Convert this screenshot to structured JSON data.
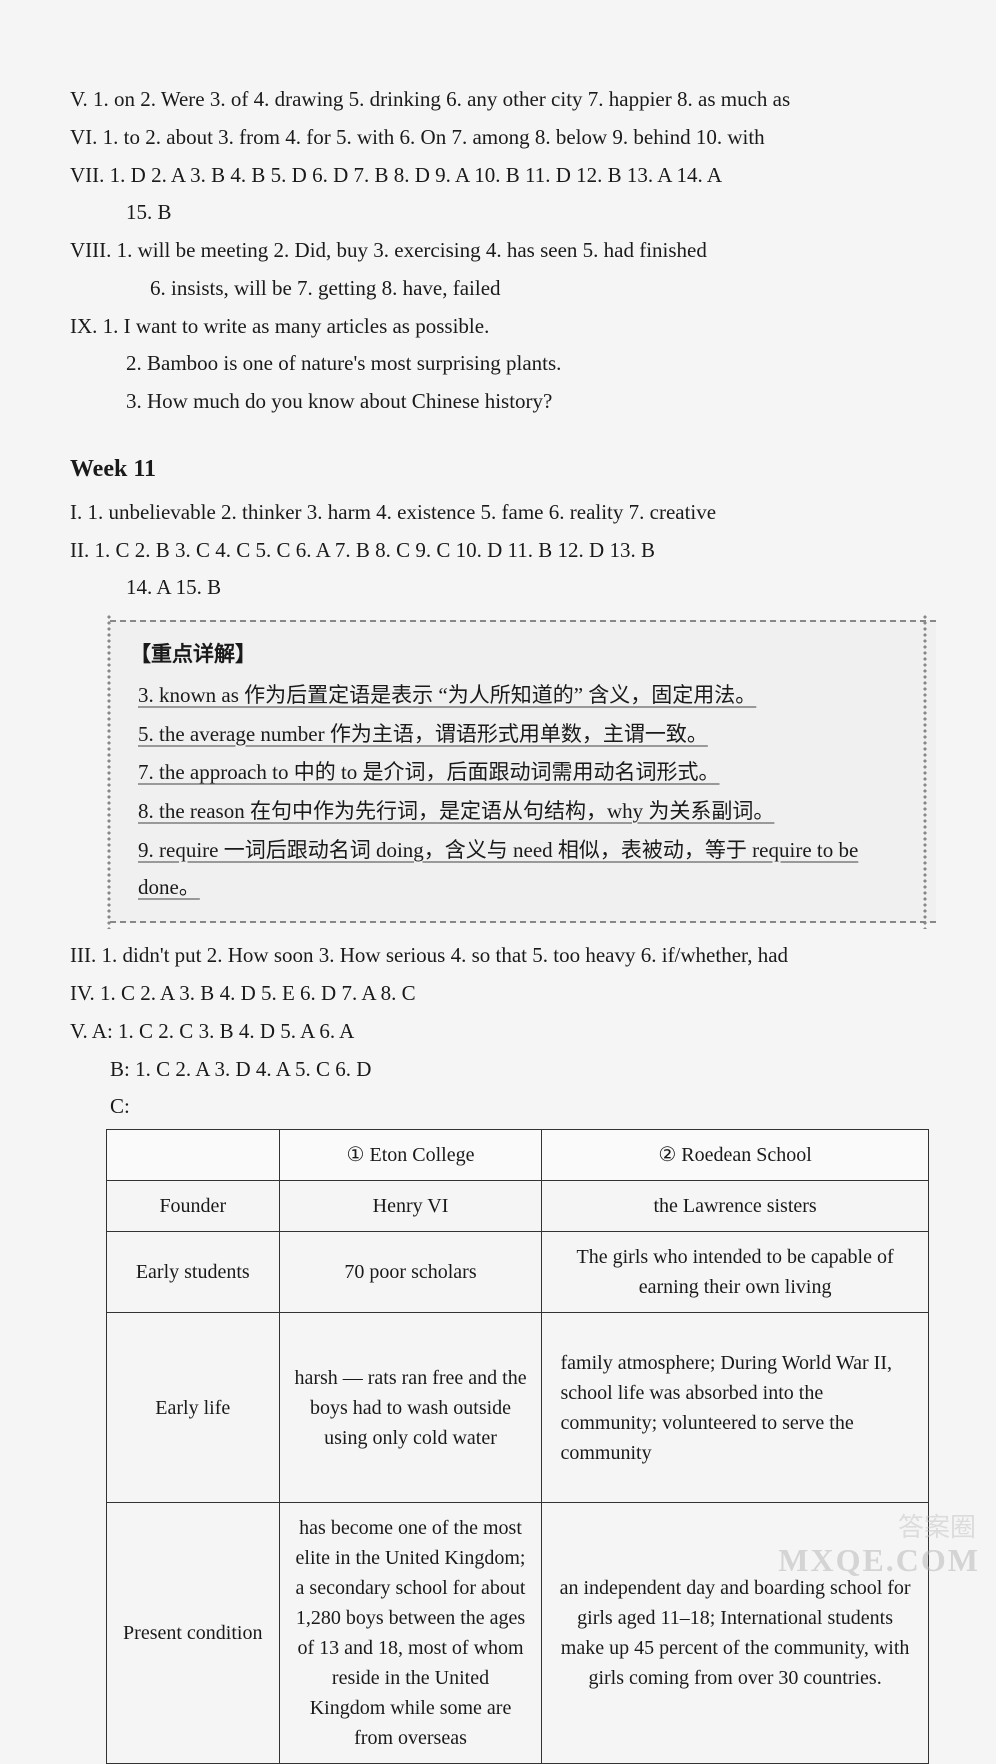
{
  "section_top": {
    "v": "V.  1. on  2. Were  3. of  4. drawing  5. drinking  6. any other city  7. happier  8. as much as",
    "vi": "VI.  1. to  2. about  3. from  4. for  5. with  6. On  7. among  8. below  9. behind  10. with",
    "vii": "VII. 1. D  2. A  3. B  4. B  5. D  6. D  7. B  8. D  9. A  10. B  11. D  12. B  13. A  14. A",
    "vii2": "15. B",
    "viii": "VIII. 1. will be meeting  2. Did, buy  3. exercising  4. has seen  5. had finished",
    "viii2": "6. insists, will be  7. getting  8. have, failed",
    "ix": "IX.  1. I want to write as many articles as possible.",
    "ix2": "2. Bamboo is one of nature's most surprising plants.",
    "ix3": "3. How much do you know about Chinese history?"
  },
  "week": "Week 11",
  "section_mid": {
    "i": "I.   1. unbelievable  2. thinker  3. harm  4. existence  5. fame  6. reality  7. creative",
    "ii": "II.  1. C  2. B  3. C  4. C  5. C  6. A  7. B  8. C  9. C  10. D  11. B  12. D  13. B",
    "ii2": "14. A  15. B"
  },
  "bracket": {
    "heading": "【重点详解】",
    "l3": "3. known as 作为后置定语是表示 “为人所知道的” 含义，固定用法。",
    "l5": "5. the average number 作为主语，谓语形式用单数，主谓一致。",
    "l7": "7. the approach  to 中的 to 是介词，后面跟动词需用动名词形式。",
    "l8": "8. the reason 在句中作为先行词，是定语从句结构，why 为关系副词。",
    "l9": "9. require 一词后跟动名词 doing，含义与 need 相似，表被动，等于 require to be done。"
  },
  "section_bot": {
    "iii": "III.  1. didn't put  2. How soon  3. How serious  4. so that  5. too heavy  6. if/whether, had",
    "iv": "IV.  1. C  2. A  3. B  4. D  5. E  6. D  7. A  8. C",
    "va": "V.  A: 1. C  2. C  3. B  4. D  5. A  6. A",
    "vb": "B: 1. C  2. A  3. D  4. A  5. C  6. D",
    "vc": "C:"
  },
  "table": {
    "headers": {
      "c1": "",
      "c2": "① Eton College",
      "c3": "② Roedean School"
    },
    "rows": [
      {
        "label": "Founder",
        "c2": "Henry VI",
        "c3": "the Lawrence sisters"
      },
      {
        "label": "Early students",
        "c2": "70 poor scholars",
        "c3": "The girls who intended to be capable of earning their own living"
      },
      {
        "label": "Early life",
        "c2": "harsh — rats ran free and the boys had to wash outside using only cold water",
        "c3": "family atmosphere;\n    During World War II, school life was absorbed into the community; volunteered to serve the community"
      },
      {
        "label": "Present condition",
        "c2": "has become one of the most elite in the United Kingdom; a secondary school for about 1,280 boys between the ages of 13 and 18, most of whom reside in the United Kingdom while some are from overseas",
        "c3": "an independent day and boarding school for girls aged 11–18; International students make up 45 percent of the community, with girls coming from over 30 countries."
      }
    ]
  },
  "watermark": {
    "a": "答案圈",
    "b": "MXQE.COM"
  }
}
